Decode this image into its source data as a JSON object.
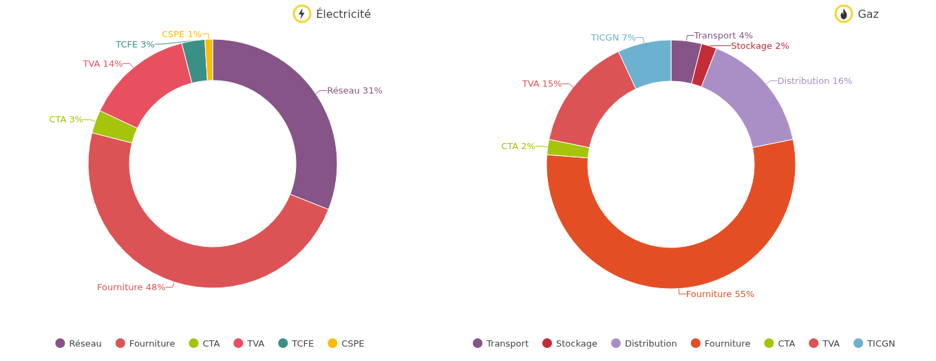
{
  "chart_data": [
    {
      "type": "donut",
      "title": "Électricité",
      "categories": [
        "Réseau",
        "Fourniture",
        "CTA",
        "TVA",
        "TCFE",
        "CSPE"
      ],
      "values": [
        31,
        48,
        3,
        14,
        3,
        1
      ],
      "colors": [
        "#875487",
        "#dc5356",
        "#a5c40a",
        "#e8505f",
        "#3a9087",
        "#fdbc00"
      ],
      "value_labels": [
        "31%",
        "48%",
        "3%",
        "14%",
        "3%",
        "1%"
      ],
      "legend": "bottom"
    },
    {
      "type": "donut",
      "title": "Gaz",
      "categories": [
        "Transport",
        "Stockage",
        "Distribution",
        "Fourniture",
        "CTA",
        "TVA",
        "TICGN"
      ],
      "values": [
        4,
        2,
        16,
        55,
        2,
        15,
        7
      ],
      "colors": [
        "#875487",
        "#c42c37",
        "#aa8fc6",
        "#e44e24",
        "#a5c40a",
        "#dc5356",
        "#6cb1cf"
      ],
      "value_labels": [
        "4%",
        "2%",
        "16%",
        "55%",
        "2%",
        "15%",
        "7%"
      ],
      "legend": "bottom"
    }
  ]
}
